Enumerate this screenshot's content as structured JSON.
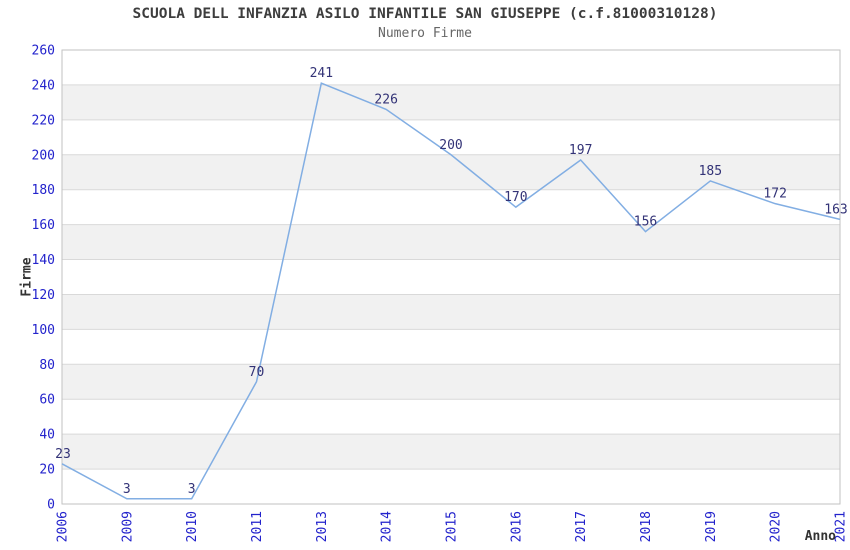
{
  "chart_data": {
    "type": "line",
    "title": "SCUOLA DELL INFANZIA ASILO INFANTILE SAN GIUSEPPE (c.f.81000310128)",
    "subtitle": "Numero Firme",
    "xlabel": "Anno",
    "ylabel": "Firme",
    "categories": [
      "2006",
      "2009",
      "2010",
      "2011",
      "2013",
      "2014",
      "2015",
      "2016",
      "2017",
      "2018",
      "2019",
      "2020",
      "2021"
    ],
    "values": [
      23,
      3,
      3,
      70,
      241,
      226,
      200,
      170,
      197,
      156,
      185,
      172,
      163
    ],
    "ylim": [
      0,
      260
    ],
    "ytick_step": 20,
    "grid": true,
    "banded_background": true,
    "legend": "none",
    "point_labels_shown": true,
    "colors": {
      "line": "#82aee3",
      "tick_label": "#2323cc",
      "point_label": "#333377",
      "band": "#f1f1f1",
      "gridline": "#d9d9d9",
      "border": "#c2c2c2",
      "title": "#3d3d3d",
      "subtitle": "#666666",
      "axis_title": "#333333",
      "background": "#ffffff"
    }
  }
}
